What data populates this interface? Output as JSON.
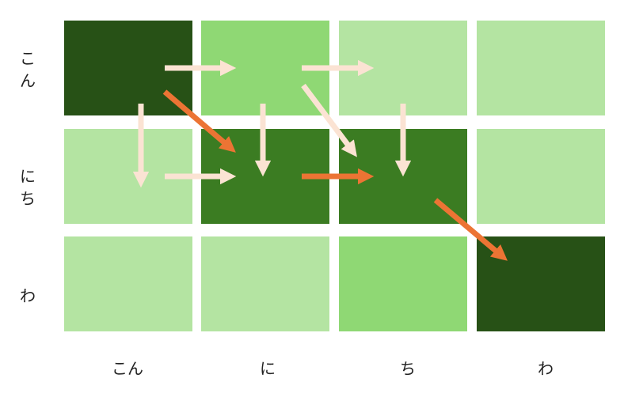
{
  "row_labels": [
    "こん",
    "にち",
    "わ"
  ],
  "col_labels": [
    "こん",
    "に",
    "ち",
    "わ"
  ],
  "colors": {
    "light": "#b4e4a2",
    "medium": "#8fd874",
    "dark": "#3b7c22",
    "darkest": "#275116",
    "arrow_plain": "#fbe3d3",
    "arrow_highlight": "#ec7434"
  },
  "cells": [
    [
      "darkest",
      "medium",
      "light",
      "light"
    ],
    [
      "light",
      "dark",
      "dark",
      "light"
    ],
    [
      "light",
      "light",
      "medium",
      "darkest"
    ]
  ],
  "arrows": [
    {
      "from": [
        0,
        0
      ],
      "to": [
        0,
        1
      ],
      "direction": "right",
      "style": "plain"
    },
    {
      "from": [
        0,
        1
      ],
      "to": [
        0,
        2
      ],
      "direction": "right",
      "style": "plain"
    },
    {
      "from": [
        1,
        0
      ],
      "to": [
        1,
        1
      ],
      "direction": "right",
      "style": "plain"
    },
    {
      "from": [
        1,
        1
      ],
      "to": [
        1,
        2
      ],
      "direction": "right",
      "style": "highlight"
    },
    {
      "from": [
        0,
        0
      ],
      "to": [
        1,
        0
      ],
      "direction": "down",
      "style": "plain"
    },
    {
      "from": [
        0,
        1
      ],
      "to": [
        1,
        1
      ],
      "direction": "down",
      "style": "plain"
    },
    {
      "from": [
        0,
        2
      ],
      "to": [
        1,
        2
      ],
      "direction": "down",
      "style": "plain"
    },
    {
      "from": [
        0,
        0
      ],
      "to": [
        1,
        1
      ],
      "direction": "diagonal",
      "style": "highlight"
    },
    {
      "from": [
        0,
        1
      ],
      "to": [
        1,
        2
      ],
      "direction": "diagonal",
      "style": "plain"
    },
    {
      "from": [
        1,
        2
      ],
      "to": [
        2,
        3
      ],
      "direction": "diagonal",
      "style": "highlight"
    }
  ]
}
